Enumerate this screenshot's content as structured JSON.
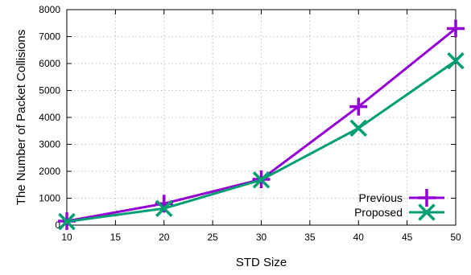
{
  "chart_data": {
    "type": "line",
    "xlabel": "STD Size",
    "ylabel": "The Number of Packet Collisions",
    "xlim": [
      10,
      50
    ],
    "ylim": [
      0,
      8000
    ],
    "x_ticks": [
      10,
      15,
      20,
      25,
      30,
      35,
      40,
      45,
      50
    ],
    "y_ticks": [
      0,
      1000,
      2000,
      3000,
      4000,
      5000,
      6000,
      7000,
      8000
    ],
    "grid": true,
    "legend_position": "bottom-right",
    "series": [
      {
        "name": "Previous",
        "color": "#9400d3",
        "marker": "plus",
        "x": [
          10,
          20,
          30,
          40,
          50
        ],
        "y": [
          150,
          800,
          1700,
          4400,
          7300
        ]
      },
      {
        "name": "Proposed",
        "color": "#009e73",
        "marker": "cross",
        "x": [
          10,
          20,
          30,
          40,
          50
        ],
        "y": [
          130,
          620,
          1680,
          3600,
          6100
        ]
      }
    ]
  }
}
